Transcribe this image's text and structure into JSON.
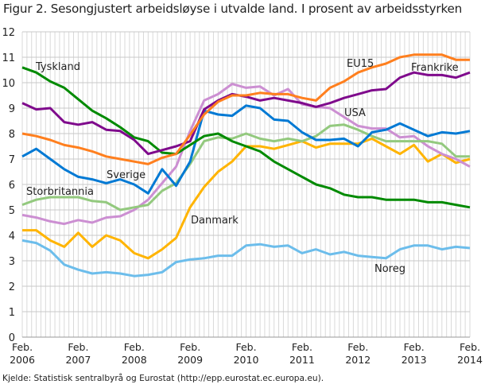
{
  "chart_data": {
    "type": "line",
    "title": "Figur 2. Sesongjustert arbeidsløyse i utvalde land. I prosent av arbeidsstyrken",
    "source": "Kjelde: Statistisk sentralbyrå og Eurostat (http://epp.eurostat.ec.europa.eu).",
    "xlabel": "",
    "ylabel": "",
    "ylim": [
      0,
      12
    ],
    "yticks": [
      "0",
      "1",
      "2",
      "3",
      "4",
      "5",
      "6",
      "7",
      "8",
      "9",
      "10",
      "11",
      "12"
    ],
    "xticks": [
      {
        "month": "Feb.",
        "year": "2006"
      },
      {
        "month": "Feb.",
        "year": "2007"
      },
      {
        "month": "Feb.",
        "year": "2008"
      },
      {
        "month": "Feb.",
        "year": "2009"
      },
      {
        "month": "Feb.",
        "year": "2010"
      },
      {
        "month": "Feb.",
        "year": "2011"
      },
      {
        "month": "Feb.",
        "year": "2012"
      },
      {
        "month": "Feb.",
        "year": "2013"
      },
      {
        "month": "Feb.",
        "year": "2014"
      }
    ],
    "x": [
      "2006-02",
      "2006-05",
      "2006-08",
      "2006-11",
      "2007-02",
      "2007-05",
      "2007-08",
      "2007-11",
      "2008-02",
      "2008-05",
      "2008-08",
      "2008-11",
      "2009-02",
      "2009-05",
      "2009-08",
      "2009-11",
      "2010-02",
      "2010-05",
      "2010-08",
      "2010-11",
      "2011-02",
      "2011-05",
      "2011-08",
      "2011-11",
      "2012-02",
      "2012-05",
      "2012-08",
      "2012-11",
      "2013-02",
      "2013-05",
      "2013-08",
      "2013-11",
      "2014-02"
    ],
    "grid": true,
    "legend": "inline labels",
    "series": [
      {
        "name": "Noreg",
        "color": "#6CBDEB",
        "values": [
          3.8,
          3.7,
          3.4,
          2.85,
          2.65,
          2.5,
          2.55,
          2.5,
          2.4,
          2.45,
          2.55,
          2.95,
          3.05,
          3.1,
          3.2,
          3.2,
          3.6,
          3.65,
          3.55,
          3.6,
          3.3,
          3.45,
          3.25,
          3.35,
          3.2,
          3.15,
          3.1,
          3.45,
          3.6,
          3.6,
          3.45,
          3.55,
          3.5
        ]
      },
      {
        "name": "Danmark",
        "color": "#FFB400",
        "values": [
          4.2,
          4.2,
          3.8,
          3.55,
          4.1,
          3.55,
          4.0,
          3.8,
          3.3,
          3.1,
          3.45,
          3.9,
          5.1,
          5.9,
          6.5,
          6.9,
          7.5,
          7.5,
          7.4,
          7.55,
          7.7,
          7.45,
          7.6,
          7.6,
          7.6,
          7.8,
          7.5,
          7.2,
          7.55,
          6.9,
          7.2,
          6.85,
          7.0
        ]
      },
      {
        "name": "USA",
        "color": "#CC8FD2",
        "values": [
          4.8,
          4.7,
          4.55,
          4.45,
          4.6,
          4.5,
          4.7,
          4.75,
          5.0,
          5.4,
          6.05,
          6.7,
          8.1,
          9.3,
          9.55,
          9.95,
          9.8,
          9.85,
          9.5,
          9.75,
          9.15,
          9.05,
          9.0,
          8.65,
          8.3,
          8.2,
          8.2,
          7.85,
          7.9,
          7.5,
          7.2,
          7.0,
          6.7
        ]
      },
      {
        "name": "Storbritannia",
        "color": "#93C97E",
        "values": [
          5.2,
          5.4,
          5.5,
          5.5,
          5.5,
          5.35,
          5.3,
          5.0,
          5.1,
          5.2,
          5.75,
          6.05,
          6.8,
          7.7,
          7.85,
          7.8,
          8.0,
          7.8,
          7.7,
          7.8,
          7.7,
          7.9,
          8.3,
          8.35,
          8.15,
          7.9,
          7.7,
          7.7,
          7.7,
          7.7,
          7.6,
          7.1,
          7.1
        ]
      },
      {
        "name": "Sverige",
        "color": "#0079D4",
        "values": [
          7.1,
          7.4,
          7.0,
          6.6,
          6.3,
          6.2,
          6.05,
          6.2,
          6.0,
          5.65,
          6.6,
          5.95,
          6.9,
          8.9,
          8.75,
          8.7,
          9.1,
          9.0,
          8.55,
          8.5,
          8.05,
          7.75,
          7.75,
          7.8,
          7.5,
          8.05,
          8.15,
          8.4,
          8.15,
          7.9,
          8.05,
          8.0,
          8.1
        ]
      },
      {
        "name": "Tyskland",
        "color": "#008A00",
        "values": [
          10.6,
          10.4,
          10.05,
          9.8,
          9.35,
          8.9,
          8.6,
          8.25,
          7.85,
          7.7,
          7.25,
          7.2,
          7.55,
          7.9,
          8.0,
          7.7,
          7.5,
          7.3,
          6.9,
          6.6,
          6.3,
          6.0,
          5.85,
          5.6,
          5.5,
          5.5,
          5.4,
          5.4,
          5.4,
          5.3,
          5.3,
          5.2,
          5.1
        ]
      },
      {
        "name": "Frankrike",
        "color": "#7F0A8C",
        "values": [
          9.2,
          8.95,
          9.0,
          8.45,
          8.35,
          8.45,
          8.15,
          8.1,
          7.75,
          7.2,
          7.35,
          7.5,
          7.7,
          8.95,
          9.3,
          9.55,
          9.45,
          9.3,
          9.4,
          9.3,
          9.2,
          9.05,
          9.2,
          9.4,
          9.55,
          9.7,
          9.75,
          10.2,
          10.4,
          10.3,
          10.3,
          10.2,
          10.4
        ]
      },
      {
        "name": "EU15",
        "color": "#FF7F1E",
        "values": [
          8.0,
          7.9,
          7.75,
          7.55,
          7.45,
          7.3,
          7.1,
          7.0,
          6.9,
          6.8,
          7.05,
          7.2,
          7.95,
          8.75,
          9.25,
          9.5,
          9.5,
          9.6,
          9.55,
          9.55,
          9.4,
          9.3,
          9.8,
          10.05,
          10.4,
          10.6,
          10.75,
          11.0,
          11.1,
          11.1,
          11.1,
          10.9,
          10.9
        ]
      }
    ]
  }
}
